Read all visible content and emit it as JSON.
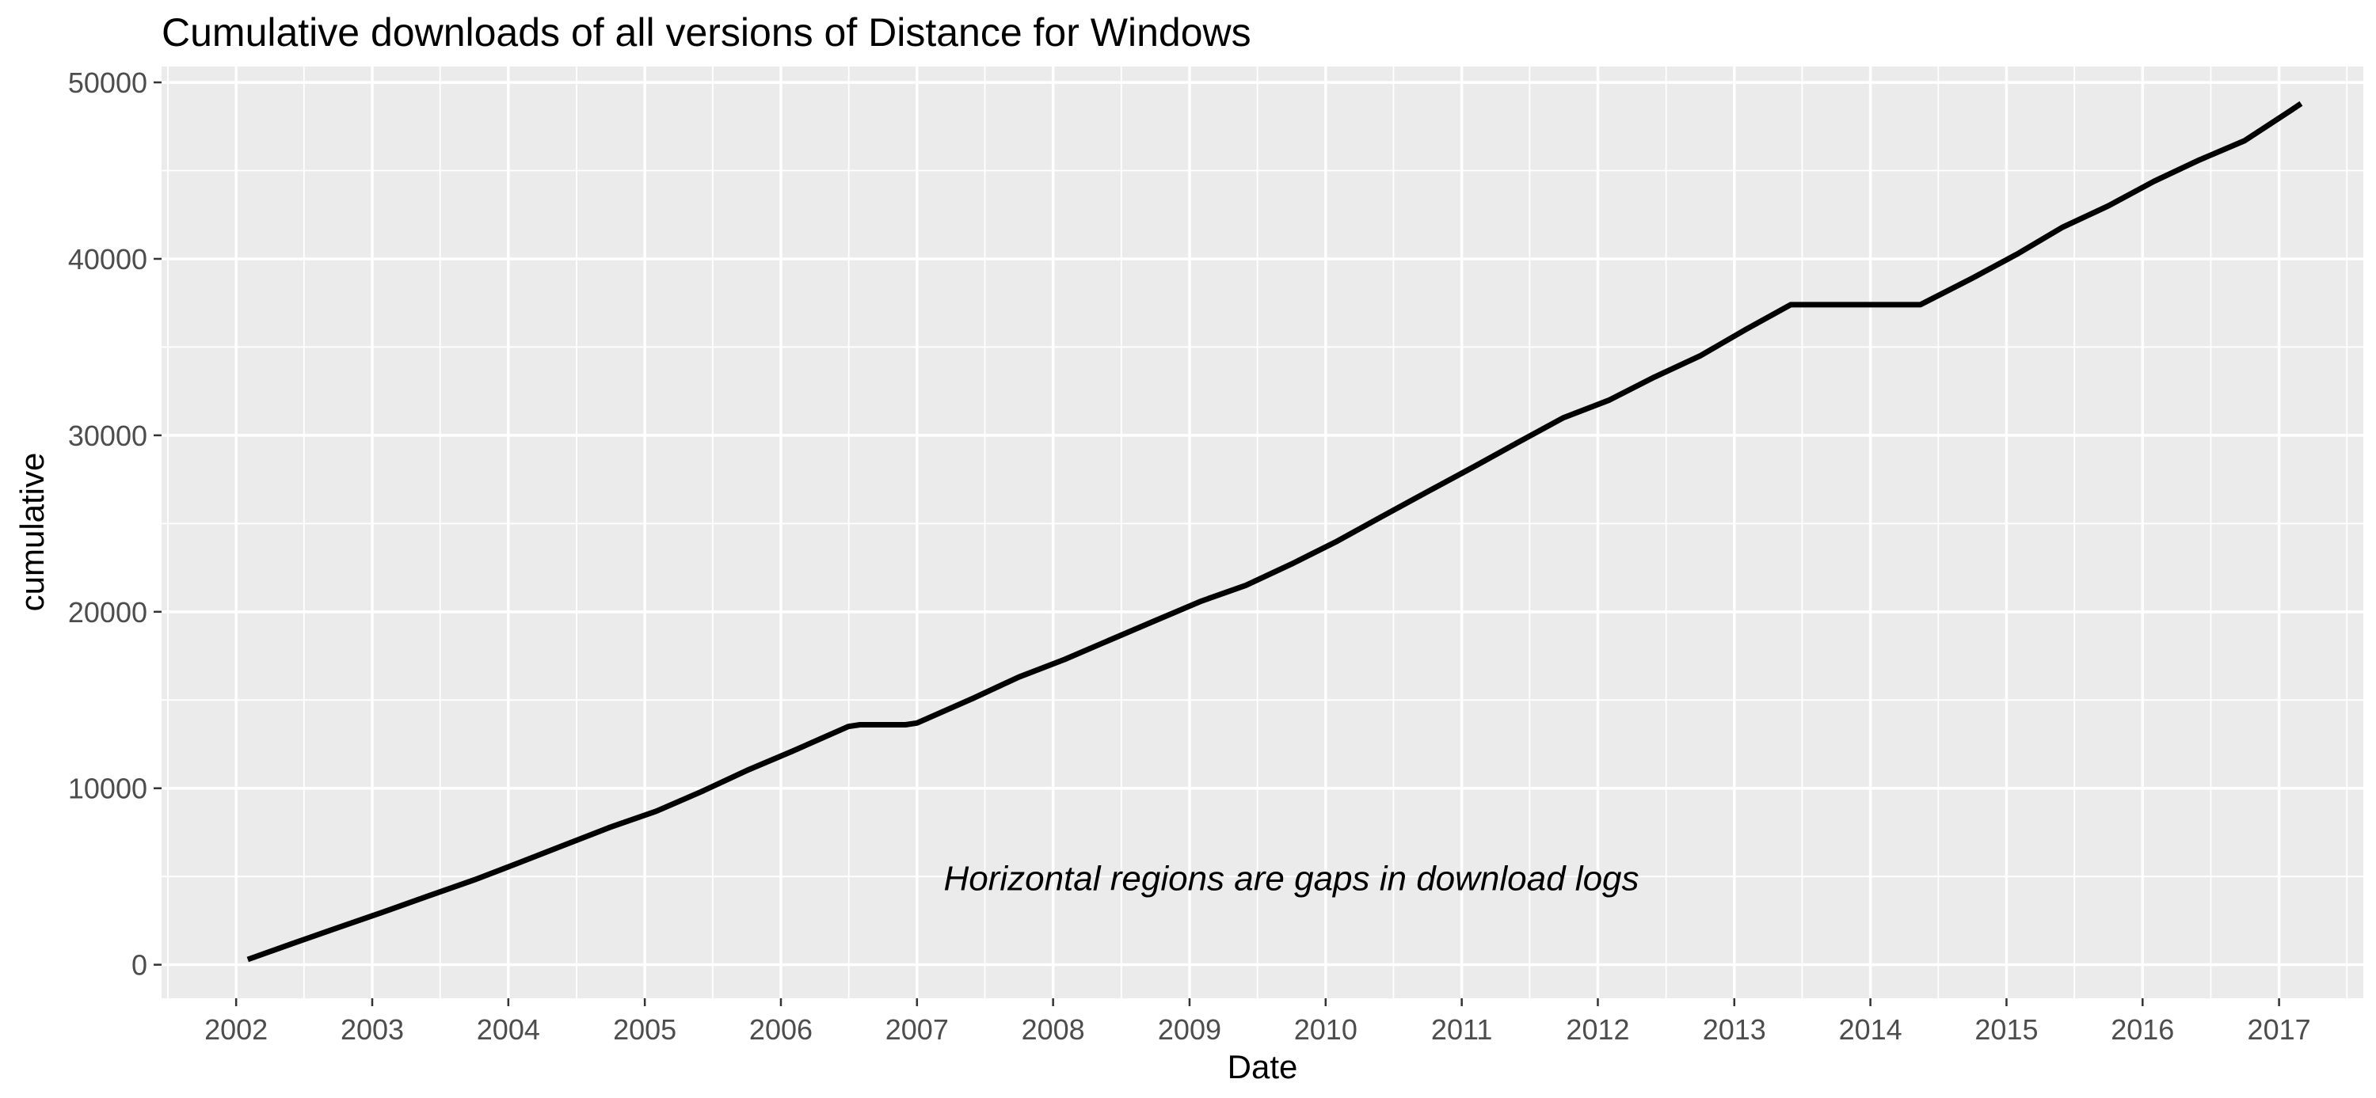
{
  "chart_data": {
    "type": "line",
    "title": "Cumulative downloads of all versions of Distance for Windows",
    "xlabel": "Date",
    "ylabel": "cumulative",
    "xlim": [
      "2001-06-15",
      "2017-08-15"
    ],
    "ylim": [
      -1900,
      50900
    ],
    "x_ticks": [
      "2002",
      "2003",
      "2004",
      "2005",
      "2006",
      "2007",
      "2008",
      "2009",
      "2010",
      "2011",
      "2012",
      "2013",
      "2014",
      "2015",
      "2016",
      "2017"
    ],
    "y_ticks": [
      "0",
      "10000",
      "20000",
      "30000",
      "40000",
      "50000"
    ],
    "grid": true,
    "legend": "none",
    "annotation": {
      "text": "Horizontal regions are gaps in download logs",
      "x": "2009-10-01",
      "y": 4900
    },
    "series": [
      {
        "color": "#000000",
        "x": [
          "2002-02-01",
          "2002-06-01",
          "2002-10-01",
          "2003-02-01",
          "2003-06-01",
          "2003-10-01",
          "2004-02-01",
          "2004-06-01",
          "2004-10-01",
          "2005-02-01",
          "2005-06-01",
          "2005-10-01",
          "2006-02-01",
          "2006-07-01",
          "2006-08-01",
          "2006-12-01",
          "2007-01-01",
          "2007-06-01",
          "2007-10-01",
          "2008-02-01",
          "2008-06-01",
          "2008-10-01",
          "2009-02-01",
          "2009-06-01",
          "2009-10-01",
          "2010-02-01",
          "2010-06-01",
          "2010-10-01",
          "2011-02-01",
          "2011-06-01",
          "2011-10-01",
          "2012-02-01",
          "2012-06-01",
          "2012-10-01",
          "2013-02-01",
          "2013-06-01",
          "2014-05-15",
          "2014-10-01",
          "2015-02-01",
          "2015-06-01",
          "2015-10-01",
          "2016-02-01",
          "2016-06-01",
          "2016-10-01",
          "2017-02-01",
          "2017-03-01"
        ],
        "y": [
          300,
          1200,
          2100,
          3000,
          3900,
          4800,
          5800,
          6800,
          7800,
          8700,
          9800,
          11000,
          12100,
          13500,
          13600,
          13600,
          13700,
          15100,
          16300,
          17300,
          18400,
          19500,
          20600,
          21500,
          22700,
          24000,
          25400,
          26800,
          28200,
          29600,
          31000,
          32000,
          33300,
          34500,
          36000,
          37400,
          37400,
          38900,
          40300,
          41800,
          43000,
          44400,
          45600,
          46700,
          48400,
          48800
        ]
      }
    ]
  }
}
